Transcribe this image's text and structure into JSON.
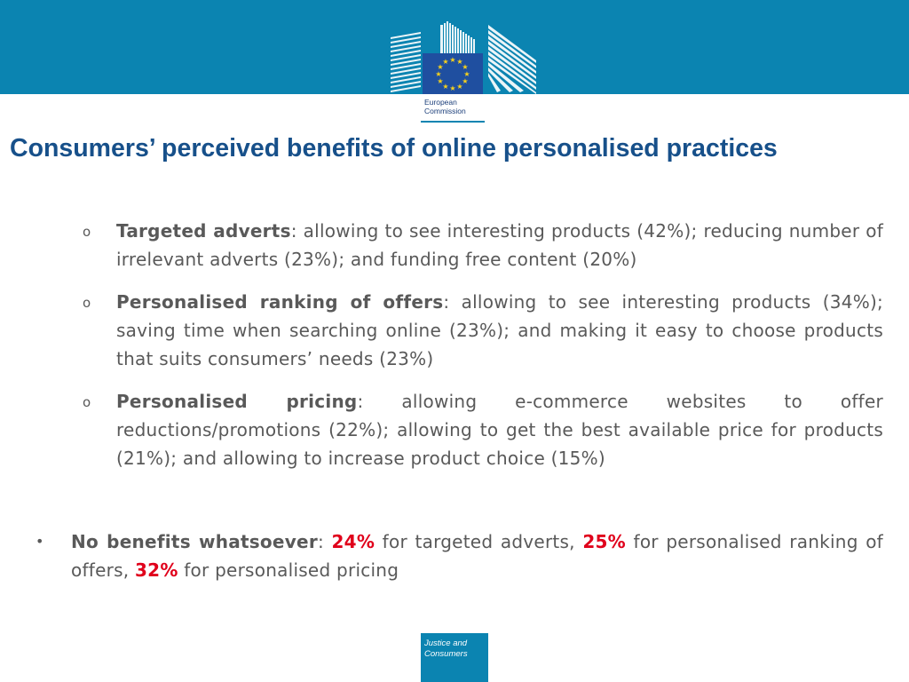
{
  "header": {
    "logo_name": "european-commission-logo",
    "logo_line1": "European",
    "logo_line2": "Commission",
    "colors": {
      "band": "#0b84b1",
      "flag_blue": "#1f4fa0",
      "star_gold": "#f7d21b"
    }
  },
  "title": "Consumers’ perceived benefits of online personalised practices",
  "sub_items": [
    {
      "term": "Targeted adverts",
      "text": ": allowing to see interesting products (42%); reducing number of irrelevant adverts (23%); and funding free content (20%)"
    },
    {
      "term": "Personalised ranking of offers",
      "text": ": allowing to see interesting products (34%); saving time when searching online (23%); and making it easy to choose products that suits consumers’ needs (23%)"
    },
    {
      "term": "Personalised pricing",
      "text": ": allowing e-commerce websites to offer reductions/promotions (22%); allowing to get the best available price for products (21%); and allowing to increase product choice (15%)"
    }
  ],
  "sub_bullet": "o",
  "main_bullet": "•",
  "no_benefits": {
    "term": "No benefits whatsoever",
    "colon": ": ",
    "pct1": "24%",
    "text1": " for targeted adverts, ",
    "pct2": "25%",
    "text2": " for personalised ranking of offers, ",
    "pct3": "32%",
    "text3": " for personalised pricing",
    "highlight_color": "#e0001b"
  },
  "footer": {
    "line1": "Justice and",
    "line2": "Consumers"
  }
}
